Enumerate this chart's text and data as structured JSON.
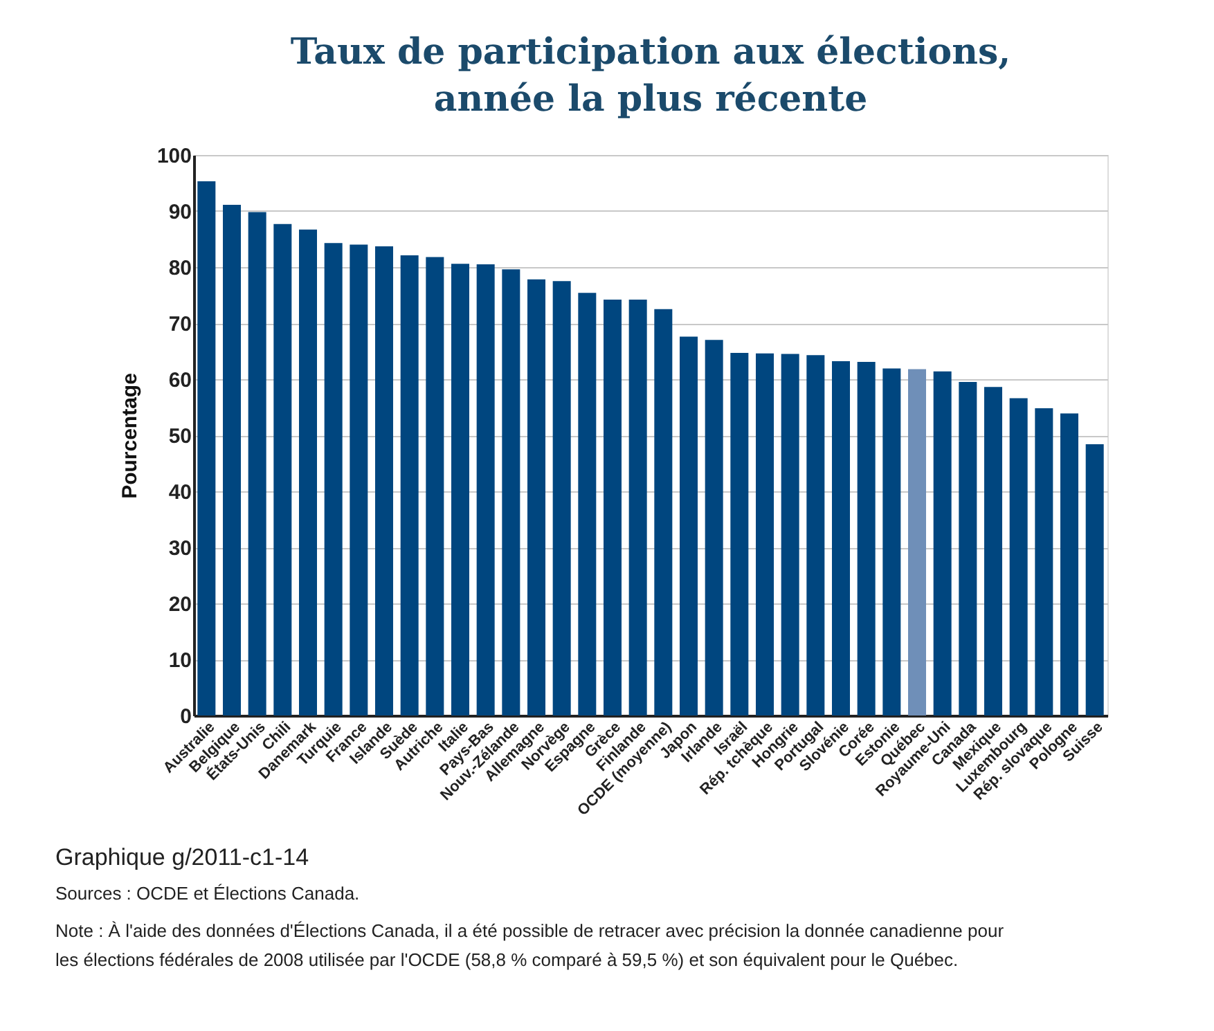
{
  "chart_data": {
    "type": "bar",
    "title": "Taux de participation aux élections, année la plus récente",
    "ylabel": "Pourcentage",
    "categories": [
      "Australie",
      "Belgique",
      "États-Unis",
      "Chili",
      "Danemark",
      "Turquie",
      "France",
      "Islande",
      "Suède",
      "Autriche",
      "Italie",
      "Pays-Bas",
      "Nouv.-Zélande",
      "Allemagne",
      "Norvège",
      "Espagne",
      "Grèce",
      "Finlande",
      "OCDE (moyenne)",
      "Japon",
      "Irlande",
      "Israël",
      "Rép. tchèque",
      "Hongrie",
      "Portugal",
      "Slovénie",
      "Corée",
      "Estonie",
      "Québec",
      "Royaume-Uni",
      "Canada",
      "Mexique",
      "Luxembourg",
      "Rép. slovaque",
      "Pologne",
      "Suisse"
    ],
    "values": [
      95.3,
      91.1,
      89.8,
      87.7,
      86.7,
      84.3,
      84.0,
      83.7,
      82.1,
      81.8,
      80.6,
      80.5,
      79.6,
      77.8,
      77.5,
      75.4,
      74.2,
      74.2,
      72.5,
      67.6,
      67.0,
      64.7,
      64.6,
      64.5,
      64.3,
      63.2,
      63.1,
      61.9,
      61.8,
      61.4,
      59.5,
      58.6,
      56.6,
      54.8,
      53.9,
      48.4
    ],
    "colors": [
      "#00467f",
      "#00467f",
      "#00467f",
      "#00467f",
      "#00467f",
      "#00467f",
      "#00467f",
      "#00467f",
      "#00467f",
      "#00467f",
      "#00467f",
      "#00467f",
      "#00467f",
      "#00467f",
      "#00467f",
      "#00467f",
      "#00467f",
      "#00467f",
      "#00467f",
      "#00467f",
      "#00467f",
      "#00467f",
      "#00467f",
      "#00467f",
      "#00467f",
      "#00467f",
      "#00467f",
      "#00467f",
      "#6f8fb8",
      "#00467f",
      "#00467f",
      "#00467f",
      "#00467f",
      "#00467f",
      "#00467f",
      "#00467f"
    ],
    "ylim": [
      0,
      100
    ],
    "yticks": [
      0,
      10,
      20,
      30,
      40,
      50,
      60,
      70,
      80,
      90,
      100
    ],
    "grid": "y",
    "annotations": [
      "Graphique g/2011-c1-14",
      "Sources : OCDE et Élections Canada.",
      "Note : À l'aide des données d'Élections Canada, il a été possible de retracer avec précision la donnée canadienne pour les élections fédérales de 2008 utilisée par l'OCDE (58,8 % comparé à 59,5 %) et son équivalent pour le Québec."
    ]
  }
}
